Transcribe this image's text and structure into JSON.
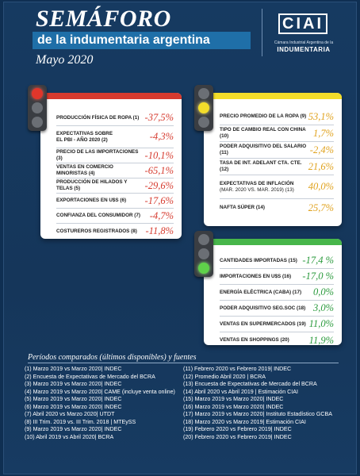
{
  "header": {
    "title": "SEMÁFORO",
    "subtitle": "de la indumentaria argentina",
    "month": "Mayo 2020",
    "logo_text": "CIAI",
    "logo_caption": "Cámara Industrial Argentina de la",
    "logo_name": "INDUMENTARIA"
  },
  "colors": {
    "red": "#d63a2e",
    "yellow": "#f3dd2a",
    "green": "#47b64a"
  },
  "red_card": {
    "rows": [
      {
        "label": "PRODUCCIÓN FÍSICA DE ROPA (1)",
        "value": "-37,5%"
      },
      {
        "label": "EXPECTATIVAS SOBRE",
        "label2": "EL PBI - AÑO 2020  (2)",
        "value": "-4,3%"
      },
      {
        "label": "PRECIO DE LAS IMPORTACIONES (3)",
        "value": "-10,1%"
      },
      {
        "label": "VENTAS EN COMERCIO MINORISTAS (4)",
        "value": "-65,1%"
      },
      {
        "label": "PRODUCCIÓN DE HILADOS Y TELAS (5)",
        "value": "-29,6%"
      },
      {
        "label": "EXPORTACIONES  EN  U$S (6)",
        "value": "-17,6%"
      },
      {
        "label": "CONFIANZA DEL CONSUMIDOR  (7)",
        "value": "-4,7%"
      },
      {
        "label": "COSTUREROS REGISTRADOS  (8)",
        "value": "-11,8%"
      }
    ]
  },
  "yellow_card": {
    "rows": [
      {
        "label": "PRECIO PROMEDIO DE LA ROPA (9)",
        "value": "53,1%"
      },
      {
        "label": "TIPO DE CAMBIO REAL CON CHINA (10)",
        "value": "1,7%"
      },
      {
        "label": "PODER ADQUISITIVO DEL SALARIO (11)",
        "value": "-2,4%"
      },
      {
        "label": "TASA DE INT. ADELANT CTA. CTE. (12)",
        "value": "21,6%"
      },
      {
        "label": "EXPECTATIVAS DE INFLACIÓN",
        "label2": "(mar. 2020 vs. mar. 2019) (13)",
        "value": "40,0%"
      },
      {
        "label": "NAFTA SÚPER  (14)",
        "value": "25,7%"
      }
    ]
  },
  "green_card": {
    "rows": [
      {
        "label": "CANTIDADES IMPORTADAS (15)",
        "value": "-17,4 %"
      },
      {
        "label": "IMPORTACIONES EN U$S (16)",
        "value": "-17,0 %"
      },
      {
        "label": "ENERGÍA ELÉCTRICA (CABA) (17)",
        "value": "0,0%"
      },
      {
        "label": "PODER ADQUISITIVO SEG.SOC (18)",
        "value": "3,0%"
      },
      {
        "label": "VENTAS EN SUPERMERCADOS (19)",
        "value": "11,0%"
      },
      {
        "label": "VENTAS EN SHOPPINGS (20)",
        "value": "11,9%"
      }
    ]
  },
  "footer": {
    "title": "Períodos comparados (últimos disponibles) y fuentes",
    "left": [
      "(1) Marzo 2019 vs Marzo 2020| INDEC",
      "(2) Encuesta de Expectativas de Mercado del BCRA",
      "(3) Marzo 2019 vs Marzo 2020| INDEC",
      "(4) Marzo 2019 vs Marzo 2020| CAME (incluye venta online)",
      "(5) Marzo 2019 vs Marzo 2020| INDEC",
      "(6) Marzo 2019 vs Marzo 2020| INDEC",
      "(7) Abril 2020 vs Marzo 2020| UTDT",
      "(8) III Trim. 2019 vs. III Trim. 2018 | MTEySS",
      "(9) Marzo 2019 vs Marzo 2020| INDEC",
      "(10) Abril 2019 vs Abril 2020| BCRA"
    ],
    "right": [
      "(11) Febrero 2020 vs Febrero 2019| INDEC",
      "(12) Promedio Abril 2020 |  BCRA",
      "(13) Encuesta de Expectativas de Mercado del BCRA",
      "(14) Abril 2020 vs Abril 2019 | Estimación CIAI",
      "(15) Marzo 2019 vs Marzo 2020| INDEC",
      "(16) Marzo 2019 vs Marzo 2020| INDEC",
      "(17) Marzo 2019 vs Marzo 2020| Instituto Estadístico GCBA",
      "(18) Marzo 2020 vs Marzo  2019| Estimación CIAI",
      "(19) Febrero 2020 vs Febrero 2019| INDEC",
      "(20) Febrero 2020 vs Febrero 2019| INDEC"
    ]
  }
}
